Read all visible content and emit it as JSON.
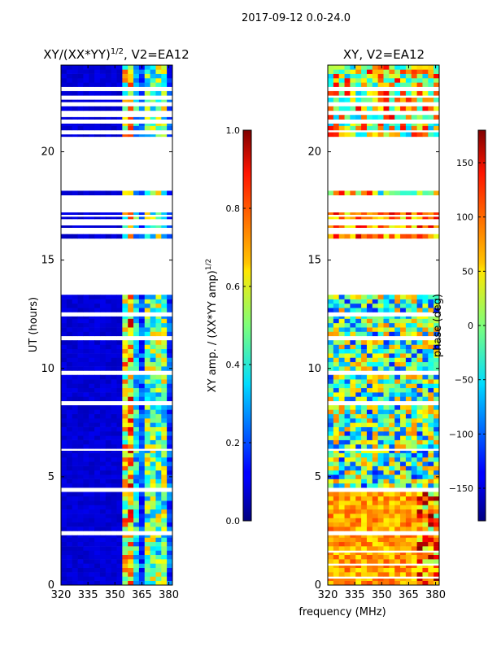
{
  "figure_title": "2017-09-12 0.0-24.0",
  "chart_data": [
    {
      "type": "heatmap",
      "title_base": "XY/(XX*YY)",
      "title_exp": "1/2",
      "title_suffix": ", V2=EA12",
      "xlabel": "frequency (MHz)",
      "ylabel": "UT (hours)",
      "xlim": [
        320,
        382
      ],
      "ylim": [
        0,
        24
      ],
      "xticks": [
        320,
        335,
        350,
        365,
        380
      ],
      "yticks": [
        0,
        5,
        10,
        15,
        20
      ],
      "colorbar": {
        "label_base": "XY amp. / (XX*YY amp)",
        "label_exp": "1/2",
        "range": [
          0.0,
          1.0
        ],
        "ticks": [
          "0.0",
          "0.2",
          "0.4",
          "0.6",
          "0.8",
          "1.0"
        ],
        "colormap": "jet"
      },
      "valid_time_ranges_h": [
        [
          0.0,
          2.3
        ],
        [
          2.5,
          4.3
        ],
        [
          4.5,
          6.2
        ],
        [
          6.3,
          8.3
        ],
        [
          8.5,
          9.7
        ],
        [
          9.9,
          11.3
        ],
        [
          11.5,
          12.4
        ],
        [
          12.6,
          13.4
        ],
        [
          16.0,
          16.2
        ],
        [
          16.5,
          16.6
        ],
        [
          16.9,
          17.0
        ],
        [
          17.1,
          17.2
        ],
        [
          18.0,
          18.2
        ],
        [
          20.7,
          20.8
        ],
        [
          21.0,
          21.3
        ],
        [
          21.5,
          21.6
        ],
        [
          21.9,
          22.1
        ],
        [
          22.3,
          22.4
        ],
        [
          22.6,
          22.8
        ],
        [
          23.0,
          24.0
        ]
      ],
      "notes": "Amplitude near 0 (dark blue) below ~352 MHz; bright stripes (0.5-1.0) near 352-362 MHz and 366-376 MHz."
    },
    {
      "type": "heatmap",
      "title": "XY, V2=EA12",
      "xlabel": "frequency (MHz)",
      "xlim": [
        320,
        382
      ],
      "ylim": [
        0,
        24
      ],
      "xticks": [
        320,
        335,
        350,
        365,
        380
      ],
      "yticks": [
        0,
        5,
        10,
        15,
        20
      ],
      "colorbar": {
        "label": "phase (deg)",
        "range": [
          -180,
          180
        ],
        "ticks": [
          "−150",
          "−100",
          "−50",
          "0",
          "50",
          "100",
          "150"
        ],
        "colormap": "jet"
      },
      "valid_time_ranges_h": [
        [
          0.0,
          0.3
        ],
        [
          0.4,
          0.9
        ],
        [
          1.0,
          1.5
        ],
        [
          1.6,
          2.3
        ],
        [
          2.5,
          4.3
        ],
        [
          4.5,
          6.2
        ],
        [
          6.3,
          8.3
        ],
        [
          8.5,
          9.7
        ],
        [
          9.9,
          11.3
        ],
        [
          11.5,
          12.4
        ],
        [
          12.6,
          13.4
        ],
        [
          16.0,
          16.2
        ],
        [
          16.5,
          16.6
        ],
        [
          16.9,
          17.0
        ],
        [
          17.1,
          17.2
        ],
        [
          18.0,
          18.2
        ],
        [
          20.7,
          20.9
        ],
        [
          21.0,
          21.3
        ],
        [
          21.5,
          21.7
        ],
        [
          21.9,
          22.1
        ],
        [
          22.3,
          22.5
        ],
        [
          22.6,
          22.8
        ],
        [
          23.0,
          24.0
        ]
      ],
      "notes": "Phase mostly +50 to +150 deg (orange/red) at 0-4.5 h and 20-24 h; mixed -150 to +50 deg (blue/green) at 5-13.5 h."
    }
  ]
}
